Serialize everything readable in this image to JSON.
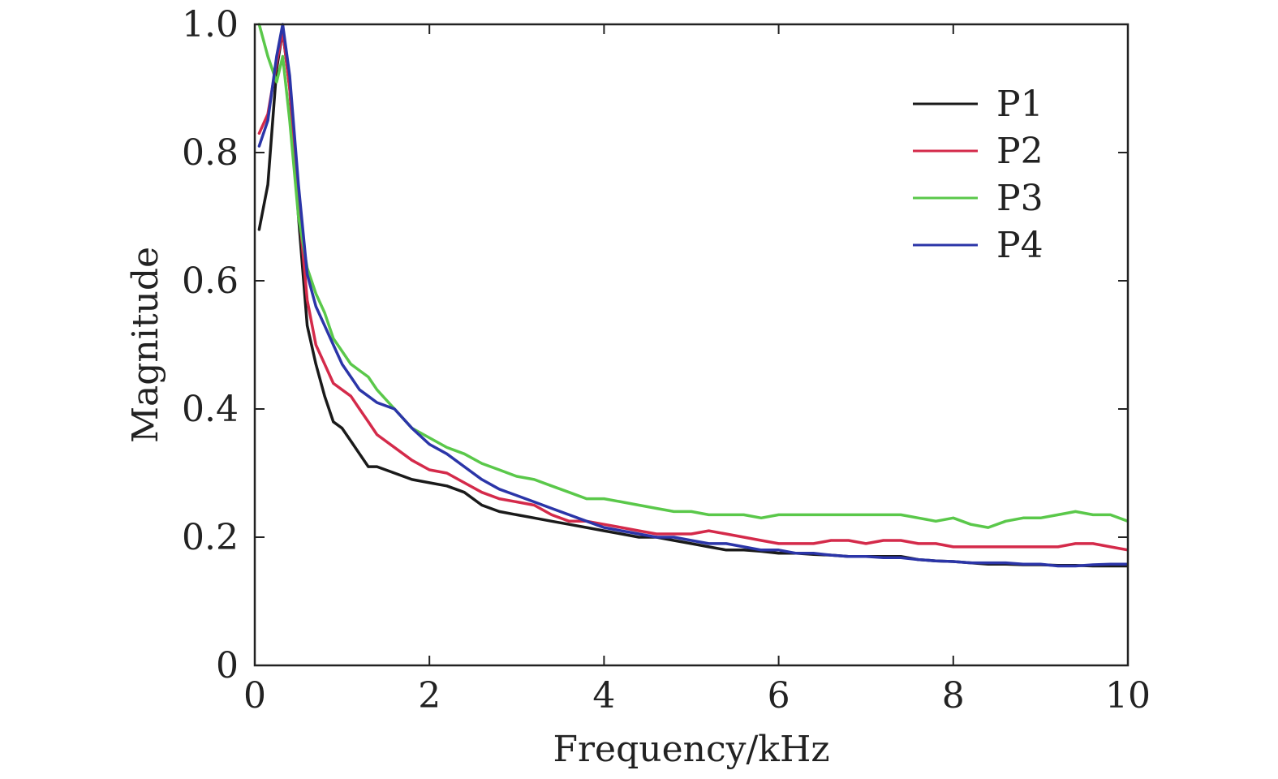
{
  "chart_data": {
    "type": "line",
    "title": "",
    "xlabel": "Frequency/kHz",
    "ylabel": "Magnitude",
    "xlim": [
      0,
      10
    ],
    "ylim": [
      0,
      1.0
    ],
    "x_ticks": [
      0,
      2,
      4,
      6,
      8,
      10
    ],
    "x_tick_labels": [
      "0",
      "2",
      "4",
      "6",
      "8",
      "10"
    ],
    "y_ticks": [
      0,
      0.2,
      0.4,
      0.6,
      0.8,
      1.0
    ],
    "y_tick_labels": [
      "0",
      "0.2",
      "0.4",
      "0.6",
      "0.8",
      "1.0"
    ],
    "grid": false,
    "legend_position": "top-right",
    "series": [
      {
        "name": "P1",
        "color": "#1a1a1a",
        "x": [
          0.05,
          0.15,
          0.25,
          0.32,
          0.4,
          0.5,
          0.6,
          0.7,
          0.8,
          0.9,
          1.0,
          1.1,
          1.2,
          1.3,
          1.4,
          1.6,
          1.8,
          2.0,
          2.2,
          2.4,
          2.6,
          2.8,
          3.0,
          3.2,
          3.4,
          3.6,
          3.8,
          4.0,
          4.2,
          4.4,
          4.6,
          4.8,
          5.0,
          5.2,
          5.4,
          5.6,
          5.8,
          6.0,
          6.2,
          6.4,
          6.6,
          6.8,
          7.0,
          7.2,
          7.4,
          7.6,
          7.8,
          8.0,
          8.2,
          8.4,
          8.6,
          8.8,
          9.0,
          9.2,
          9.4,
          9.6,
          9.8,
          10.0
        ],
        "y": [
          0.68,
          0.75,
          0.93,
          0.99,
          0.9,
          0.7,
          0.53,
          0.47,
          0.42,
          0.38,
          0.37,
          0.35,
          0.33,
          0.31,
          0.31,
          0.3,
          0.29,
          0.285,
          0.28,
          0.27,
          0.25,
          0.24,
          0.235,
          0.23,
          0.225,
          0.22,
          0.215,
          0.21,
          0.205,
          0.2,
          0.2,
          0.195,
          0.19,
          0.185,
          0.18,
          0.18,
          0.178,
          0.175,
          0.175,
          0.173,
          0.172,
          0.17,
          0.17,
          0.17,
          0.17,
          0.165,
          0.163,
          0.162,
          0.16,
          0.158,
          0.158,
          0.157,
          0.157,
          0.156,
          0.156,
          0.155,
          0.155,
          0.155
        ]
      },
      {
        "name": "P2",
        "color": "#d42a4a",
        "x": [
          0.05,
          0.15,
          0.25,
          0.32,
          0.4,
          0.5,
          0.6,
          0.7,
          0.8,
          0.9,
          1.0,
          1.1,
          1.2,
          1.3,
          1.4,
          1.6,
          1.8,
          2.0,
          2.2,
          2.4,
          2.6,
          2.8,
          3.0,
          3.2,
          3.4,
          3.6,
          3.8,
          4.0,
          4.2,
          4.4,
          4.6,
          4.8,
          5.0,
          5.2,
          5.4,
          5.6,
          5.8,
          6.0,
          6.2,
          6.4,
          6.6,
          6.8,
          7.0,
          7.2,
          7.4,
          7.6,
          7.8,
          8.0,
          8.2,
          8.4,
          8.6,
          8.8,
          9.0,
          9.2,
          9.4,
          9.6,
          9.8,
          10.0
        ],
        "y": [
          0.83,
          0.86,
          0.94,
          0.99,
          0.9,
          0.72,
          0.57,
          0.5,
          0.47,
          0.44,
          0.43,
          0.42,
          0.4,
          0.38,
          0.36,
          0.34,
          0.32,
          0.305,
          0.3,
          0.285,
          0.27,
          0.26,
          0.255,
          0.25,
          0.235,
          0.225,
          0.225,
          0.22,
          0.215,
          0.21,
          0.205,
          0.205,
          0.205,
          0.21,
          0.205,
          0.2,
          0.195,
          0.19,
          0.19,
          0.19,
          0.195,
          0.195,
          0.19,
          0.195,
          0.195,
          0.19,
          0.19,
          0.185,
          0.185,
          0.185,
          0.185,
          0.185,
          0.185,
          0.185,
          0.19,
          0.19,
          0.185,
          0.18
        ]
      },
      {
        "name": "P3",
        "color": "#5ac84a",
        "x": [
          0.05,
          0.15,
          0.25,
          0.32,
          0.4,
          0.5,
          0.6,
          0.7,
          0.8,
          0.9,
          1.0,
          1.1,
          1.2,
          1.3,
          1.4,
          1.6,
          1.8,
          2.0,
          2.2,
          2.4,
          2.6,
          2.8,
          3.0,
          3.2,
          3.4,
          3.6,
          3.8,
          4.0,
          4.2,
          4.4,
          4.6,
          4.8,
          5.0,
          5.2,
          5.4,
          5.6,
          5.8,
          6.0,
          6.2,
          6.4,
          6.6,
          6.8,
          7.0,
          7.2,
          7.4,
          7.6,
          7.8,
          8.0,
          8.2,
          8.4,
          8.6,
          8.8,
          9.0,
          9.2,
          9.4,
          9.6,
          9.8,
          10.0
        ],
        "y": [
          1.0,
          0.95,
          0.91,
          0.95,
          0.85,
          0.7,
          0.62,
          0.58,
          0.55,
          0.51,
          0.49,
          0.47,
          0.46,
          0.45,
          0.43,
          0.4,
          0.37,
          0.355,
          0.34,
          0.33,
          0.315,
          0.305,
          0.295,
          0.29,
          0.28,
          0.27,
          0.26,
          0.26,
          0.255,
          0.25,
          0.245,
          0.24,
          0.24,
          0.235,
          0.235,
          0.235,
          0.23,
          0.235,
          0.235,
          0.235,
          0.235,
          0.235,
          0.235,
          0.235,
          0.235,
          0.23,
          0.225,
          0.23,
          0.22,
          0.215,
          0.225,
          0.23,
          0.23,
          0.235,
          0.24,
          0.235,
          0.235,
          0.225
        ]
      },
      {
        "name": "P4",
        "color": "#2b35a8",
        "x": [
          0.05,
          0.15,
          0.25,
          0.32,
          0.4,
          0.5,
          0.6,
          0.7,
          0.8,
          0.9,
          1.0,
          1.1,
          1.2,
          1.3,
          1.4,
          1.6,
          1.8,
          2.0,
          2.2,
          2.4,
          2.6,
          2.8,
          3.0,
          3.2,
          3.4,
          3.6,
          3.8,
          4.0,
          4.2,
          4.4,
          4.6,
          4.8,
          5.0,
          5.2,
          5.4,
          5.6,
          5.8,
          6.0,
          6.2,
          6.4,
          6.6,
          6.8,
          7.0,
          7.2,
          7.4,
          7.6,
          7.8,
          8.0,
          8.2,
          8.4,
          8.6,
          8.8,
          9.0,
          9.2,
          9.4,
          9.6,
          9.8,
          10.0
        ],
        "y": [
          0.81,
          0.85,
          0.95,
          1.0,
          0.92,
          0.75,
          0.61,
          0.56,
          0.53,
          0.5,
          0.47,
          0.45,
          0.43,
          0.42,
          0.41,
          0.4,
          0.37,
          0.345,
          0.33,
          0.31,
          0.29,
          0.275,
          0.265,
          0.255,
          0.245,
          0.235,
          0.225,
          0.215,
          0.21,
          0.205,
          0.2,
          0.2,
          0.195,
          0.19,
          0.19,
          0.185,
          0.18,
          0.18,
          0.175,
          0.175,
          0.172,
          0.17,
          0.17,
          0.168,
          0.168,
          0.165,
          0.163,
          0.162,
          0.16,
          0.16,
          0.16,
          0.158,
          0.158,
          0.155,
          0.155,
          0.157,
          0.158,
          0.158
        ]
      }
    ]
  }
}
